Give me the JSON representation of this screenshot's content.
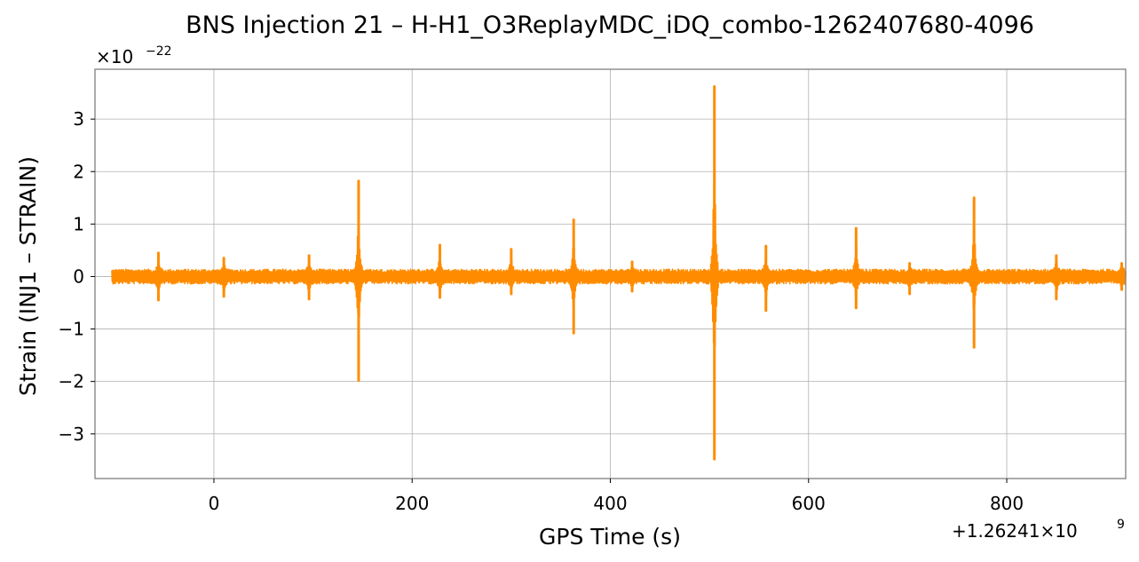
{
  "chart_data": {
    "type": "line",
    "title": "BNS Injection 21 – H-H1_O3ReplayMDC_iDQ_combo-1262407680-4096",
    "xlabel": "GPS Time (s)",
    "ylabel": "Strain (INJ1 – STRAIN)",
    "x_offset_label": "+1.26241×10",
    "x_offset_exponent": "9",
    "y_scale_label": "×10",
    "y_scale_exponent": "−22",
    "xlim": [
      -120,
      920
    ],
    "ylim": [
      -3.85,
      3.95
    ],
    "x_ticks": [
      0,
      200,
      400,
      600,
      800
    ],
    "x_tick_labels": [
      "0",
      "200",
      "400",
      "600",
      "800"
    ],
    "y_ticks": [
      -3,
      -2,
      -1,
      0,
      1,
      2,
      3
    ],
    "y_tick_labels": [
      "−3",
      "−2",
      "−1",
      "0",
      "1",
      "2",
      "3"
    ],
    "grid": true,
    "series": [
      {
        "color": "#ff8c00",
        "x_range": [
          -103,
          920
        ],
        "noise_band": 0.14,
        "spikes": [
          {
            "x": -56,
            "ymax": 0.45,
            "ymin": -0.45
          },
          {
            "x": 10,
            "ymax": 0.35,
            "ymin": -0.38
          },
          {
            "x": 96,
            "ymax": 0.4,
            "ymin": -0.43
          },
          {
            "x": 146,
            "ymax": 1.82,
            "ymin": -1.98
          },
          {
            "x": 228,
            "ymax": 0.6,
            "ymin": -0.4
          },
          {
            "x": 300,
            "ymax": 0.52,
            "ymin": -0.33
          },
          {
            "x": 363,
            "ymax": 1.08,
            "ymin": -1.08
          },
          {
            "x": 422,
            "ymax": 0.28,
            "ymin": -0.28
          },
          {
            "x": 505,
            "ymax": 3.62,
            "ymin": -3.48
          },
          {
            "x": 557,
            "ymax": 0.58,
            "ymin": -0.65
          },
          {
            "x": 648,
            "ymax": 0.92,
            "ymin": -0.6
          },
          {
            "x": 702,
            "ymax": 0.25,
            "ymin": -0.33
          },
          {
            "x": 767,
            "ymax": 1.5,
            "ymin": -1.35
          },
          {
            "x": 850,
            "ymax": 0.4,
            "ymin": -0.43
          },
          {
            "x": 916,
            "ymax": 0.25,
            "ymin": -0.25
          }
        ]
      }
    ]
  }
}
